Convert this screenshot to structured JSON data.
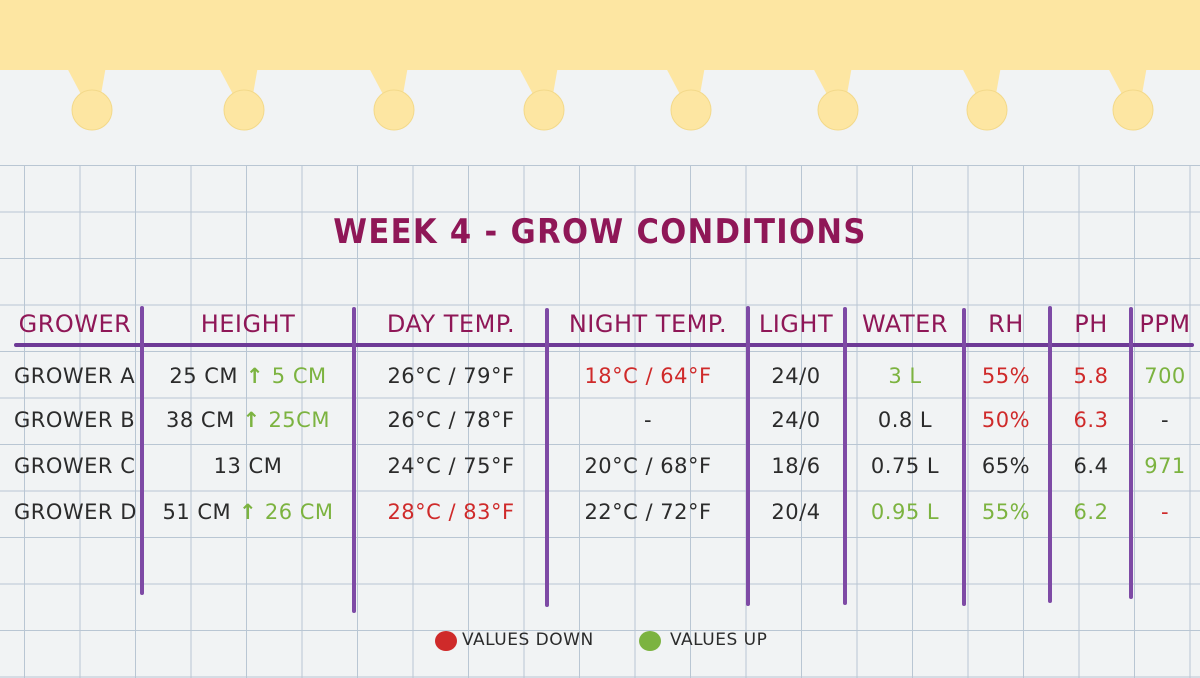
{
  "colors": {
    "title": "#8f1757",
    "header": "#8f1757",
    "divider": "#7e4aa5",
    "down": "#cf2a2a",
    "up": "#7cb340",
    "tab": "#fde6a2"
  },
  "chart_data": {
    "type": "table",
    "title": "WEEK 4 - GROW CONDITIONS",
    "columns": [
      "GROWER",
      "HEIGHT",
      "DAY TEMP.",
      "NIGHT TEMP.",
      "LIGHT",
      "WATER",
      "RH",
      "PH",
      "PPM"
    ],
    "rows": [
      {
        "grower": "GROWER A",
        "height": "25 CM",
        "height_change": "5 CM",
        "height_trend": "up",
        "day_temp": "26°C / 79°F",
        "day_temp_trend": "",
        "night_temp": "18°C / 64°F",
        "night_temp_trend": "down",
        "light": "24/0",
        "water": "3 L",
        "water_trend": "up",
        "rh": "55%",
        "rh_trend": "down",
        "ph": "5.8",
        "ph_trend": "down",
        "ppm": "700",
        "ppm_trend": "up"
      },
      {
        "grower": "GROWER B",
        "height": "38 CM",
        "height_change": "25CM",
        "height_trend": "up",
        "day_temp": "26°C / 78°F",
        "day_temp_trend": "",
        "night_temp": "-",
        "night_temp_trend": "",
        "light": "24/0",
        "water": "0.8 L",
        "water_trend": "",
        "rh": "50%",
        "rh_trend": "down",
        "ph": "6.3",
        "ph_trend": "down",
        "ppm": "-",
        "ppm_trend": ""
      },
      {
        "grower": "GROWER C",
        "height": "13 CM",
        "height_change": "",
        "height_trend": "",
        "day_temp": "24°C / 75°F",
        "day_temp_trend": "",
        "night_temp": "20°C / 68°F",
        "night_temp_trend": "",
        "light": "18/6",
        "water": "0.75 L",
        "water_trend": "",
        "rh": "65%",
        "rh_trend": "",
        "ph": "6.4",
        "ph_trend": "",
        "ppm": "971",
        "ppm_trend": "up"
      },
      {
        "grower": "GROWER D",
        "height": "51 CM",
        "height_change": "26 CM",
        "height_trend": "up",
        "day_temp": "28°C / 83°F",
        "day_temp_trend": "down",
        "night_temp": "22°C / 72°F",
        "night_temp_trend": "",
        "light": "20/4",
        "water": "0.95 L",
        "water_trend": "up",
        "rh": "55%",
        "rh_trend": "up",
        "ph": "6.2",
        "ph_trend": "up",
        "ppm": "-",
        "ppm_trend": "down"
      }
    ],
    "legend": [
      {
        "label": "VALUES DOWN",
        "color": "#cf2a2a"
      },
      {
        "label": "VALUES UP",
        "color": "#7cb340"
      }
    ]
  }
}
